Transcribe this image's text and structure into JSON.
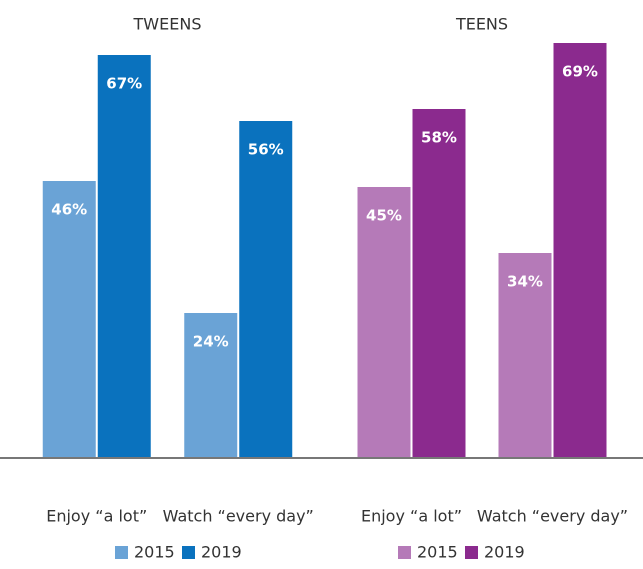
{
  "chart_data": [
    {
      "type": "bar",
      "title": "TWEENS",
      "categories": [
        "Enjoy “a lot”",
        "Watch “every day”"
      ],
      "series": [
        {
          "name": "2015",
          "color": "#6aa3d6",
          "values": [
            46,
            24
          ],
          "value_labels": [
            "46%",
            "24%"
          ]
        },
        {
          "name": "2019",
          "color": "#0a72be",
          "values": [
            67,
            56
          ],
          "value_labels": [
            "67%",
            "56%"
          ]
        }
      ],
      "ylim": [
        0,
        70
      ]
    },
    {
      "type": "bar",
      "title": "TEENS",
      "categories": [
        "Enjoy “a lot”",
        "Watch “every day”"
      ],
      "series": [
        {
          "name": "2015",
          "color": "#b57ab8",
          "values": [
            45,
            34
          ],
          "value_labels": [
            "45%",
            "34%"
          ]
        },
        {
          "name": "2019",
          "color": "#8b2a8e",
          "values": [
            58,
            69
          ],
          "value_labels": [
            "58%",
            "69%"
          ]
        }
      ],
      "ylim": [
        0,
        70
      ]
    }
  ]
}
